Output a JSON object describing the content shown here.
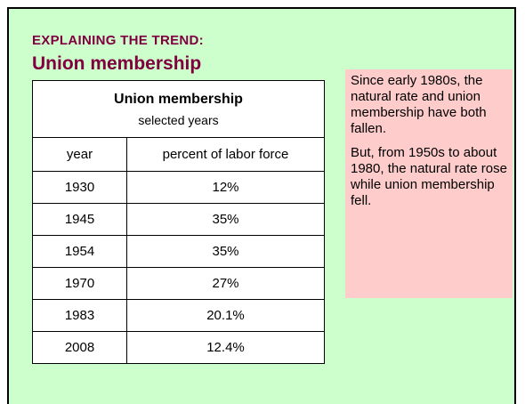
{
  "header": {
    "kicker": "EXPLAINING THE TREND:",
    "title": "Union membership"
  },
  "table": {
    "title": "Union membership",
    "subtitle": "selected years",
    "columns": [
      "year",
      "percent of labor force"
    ],
    "rows": [
      [
        "1930",
        "12%"
      ],
      [
        "1945",
        "35%"
      ],
      [
        "1954",
        "35%"
      ],
      [
        "1970",
        "27%"
      ],
      [
        "1983",
        "20.1%"
      ],
      [
        "2008",
        "12.4%"
      ]
    ]
  },
  "note": {
    "paragraphs": [
      "Since early 1980s, the natural rate and union membership have both fallen.",
      "But, from 1950s to about 1980, the natural rate rose while union membership fell."
    ]
  }
}
